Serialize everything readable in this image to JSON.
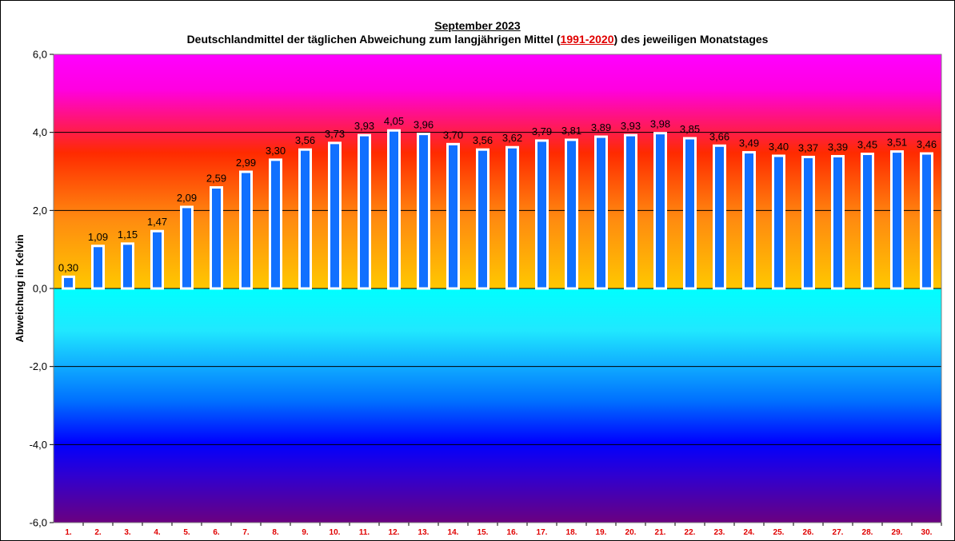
{
  "chart_data": {
    "type": "bar",
    "title": "September 2023",
    "subtitle": {
      "before": "Deutschlandmittel der täglichen Abweichung zum langjährigen Mittel (",
      "reference": "1991-2020",
      "after": ") des jeweiligen Monatstages"
    },
    "ylabel": "Abweichung  in Kelvin",
    "xlabel": "",
    "ylim": [
      -6,
      6
    ],
    "yticks": [
      6,
      4,
      2,
      0,
      -2,
      -4,
      -6
    ],
    "ytick_labels": [
      "6,0",
      "4,0",
      "2,0",
      "0,0",
      "-2,0",
      "-4,0",
      "-6,0"
    ],
    "grid": true,
    "categories": [
      "1.",
      "2.",
      "3.",
      "4.",
      "5.",
      "6.",
      "7.",
      "8.",
      "9.",
      "10.",
      "11.",
      "12.",
      "13.",
      "14.",
      "15.",
      "16.",
      "17.",
      "18.",
      "19.",
      "20.",
      "21.",
      "22.",
      "23.",
      "24.",
      "25.",
      "26.",
      "27.",
      "28.",
      "29.",
      "30."
    ],
    "values": [
      0.3,
      1.09,
      1.15,
      1.47,
      2.09,
      2.59,
      2.99,
      3.3,
      3.56,
      3.73,
      3.93,
      4.05,
      3.96,
      3.7,
      3.56,
      3.62,
      3.79,
      3.81,
      3.89,
      3.93,
      3.98,
      3.85,
      3.66,
      3.49,
      3.4,
      3.37,
      3.39,
      3.45,
      3.51,
      3.46
    ],
    "value_labels": [
      "0,30",
      "1,09",
      "1,15",
      "1,47",
      "2,09",
      "2,59",
      "2,99",
      "3,30",
      "3,56",
      "3,73",
      "3,93",
      "4,05",
      "3,96",
      "3,70",
      "3,56",
      "3,62",
      "3,79",
      "3,81",
      "3,89",
      "3,93",
      "3,98",
      "3,85",
      "3,66",
      "3,49",
      "3,40",
      "3,37",
      "3,39",
      "3,45",
      "3,51",
      "3,46"
    ],
    "colors": {
      "bar_fill": "#1170ff",
      "bar_outline": "#ffffff",
      "category_label": "#e00000",
      "background_positive": [
        "#ff00ff",
        "#ff2600",
        "#ffc000"
      ],
      "background_negative": [
        "#00ffff",
        "#0000ff",
        "#6a0080"
      ]
    }
  }
}
